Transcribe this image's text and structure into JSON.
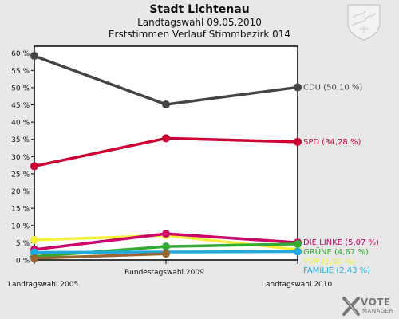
{
  "header": {
    "title": "Stadt Lichtenau",
    "subtitle1": "Landtagswahl 09.05.2010",
    "subtitle2": "Erststimmen Verlauf Stimmbezirk 014"
  },
  "branding": {
    "crest_icon": "coat-of-arms-icon",
    "logo_text": "VOTE",
    "logo_subtext": "MANAGER"
  },
  "chart_data": {
    "type": "line",
    "title": "Stadt Lichtenau",
    "categories": [
      "Landtagswahl 2005",
      "Bundestagswahl 2009",
      "Landtagswahl 2010"
    ],
    "ylim": [
      0,
      62
    ],
    "yticks": [
      0,
      5,
      10,
      15,
      20,
      25,
      30,
      35,
      40,
      45,
      50,
      55,
      60
    ],
    "ytick_labels": [
      "0 %",
      "5 %",
      "10 %",
      "15 %",
      "20 %",
      "25 %",
      "30 %",
      "35 %",
      "40 %",
      "45 %",
      "50 %",
      "55 %",
      "60 %"
    ],
    "grid": false,
    "plot_background": "#ffffff",
    "series": [
      {
        "name": "CDU",
        "end_label": "CDU (50,10 %)",
        "color": "#444444",
        "values": [
          59.2,
          45.1,
          50.1
        ]
      },
      {
        "name": "SPD",
        "end_label": "SPD (34,28 %)",
        "color": "#cc0033",
        "values": [
          27.2,
          35.3,
          34.28
        ]
      },
      {
        "name": "FDP",
        "end_label": "FDP (3,02 %)",
        "color": "#f5f03c",
        "values": [
          5.8,
          7.1,
          3.02
        ]
      },
      {
        "name": "DIE LINKE",
        "end_label": "DIE LINKE (5,07 %)",
        "color": "#cc0066",
        "values": [
          3.0,
          7.6,
          5.07
        ]
      },
      {
        "name": "GRÜNE",
        "end_label": "GRÜNE (4,67 %)",
        "color": "#33aa33",
        "values": [
          1.0,
          3.9,
          4.67
        ]
      },
      {
        "name": "FAMILIE",
        "end_label": "FAMILIE (2,43 %)",
        "color": "#22aadd",
        "values": [
          2.2,
          null,
          2.43
        ]
      },
      {
        "name": "",
        "end_label": "",
        "color": "#996633",
        "values": [
          0.5,
          1.8,
          null
        ]
      }
    ]
  }
}
